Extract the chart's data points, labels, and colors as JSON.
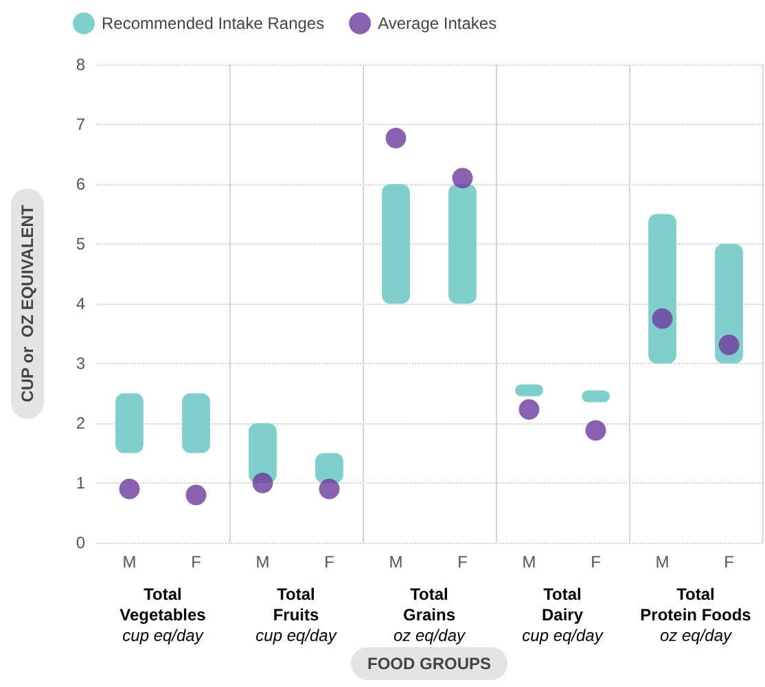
{
  "chart_data": {
    "type": "bar",
    "xlabel": "FOOD GROUPS",
    "ylabel": "CUP or  OZ EQUIVALENT",
    "categories": [
      "M",
      "F",
      "M",
      "F",
      "M",
      "F",
      "M",
      "F",
      "M",
      "F"
    ],
    "series": [
      {
        "name": "Recommended Intake Ranges",
        "color": "#80cfcd",
        "base": [
          1.5,
          1.5,
          1.0,
          1.0,
          4.0,
          4.0,
          2.45,
          2.35,
          3.0,
          3.0
        ],
        "values": [
          1.0,
          1.0,
          1.0,
          0.5,
          2.0,
          2.0,
          0.2,
          0.2,
          2.5,
          2.0
        ]
      },
      {
        "type": "scatter",
        "name": "Average Intakes",
        "color": "#6b3a9c",
        "values": [
          0.9,
          0.8,
          1.0,
          0.9,
          6.77,
          6.1,
          2.23,
          1.88,
          3.75,
          3.31
        ]
      }
    ],
    "ylim": [
      0,
      8
    ],
    "yticks": [
      0,
      1,
      2,
      3,
      4,
      5,
      6,
      7,
      8
    ],
    "grid": "y",
    "legend": "top left",
    "marker": "circle",
    "annotations": [
      "Total\nVegetables\ncup eq/day",
      "Total\nFruits\ncup eq/day",
      "Total\nGrains\noz eq/day",
      "Total\nDairy\ncup eq/day",
      "Total\nProtein Foods\noz eq/day"
    ]
  }
}
